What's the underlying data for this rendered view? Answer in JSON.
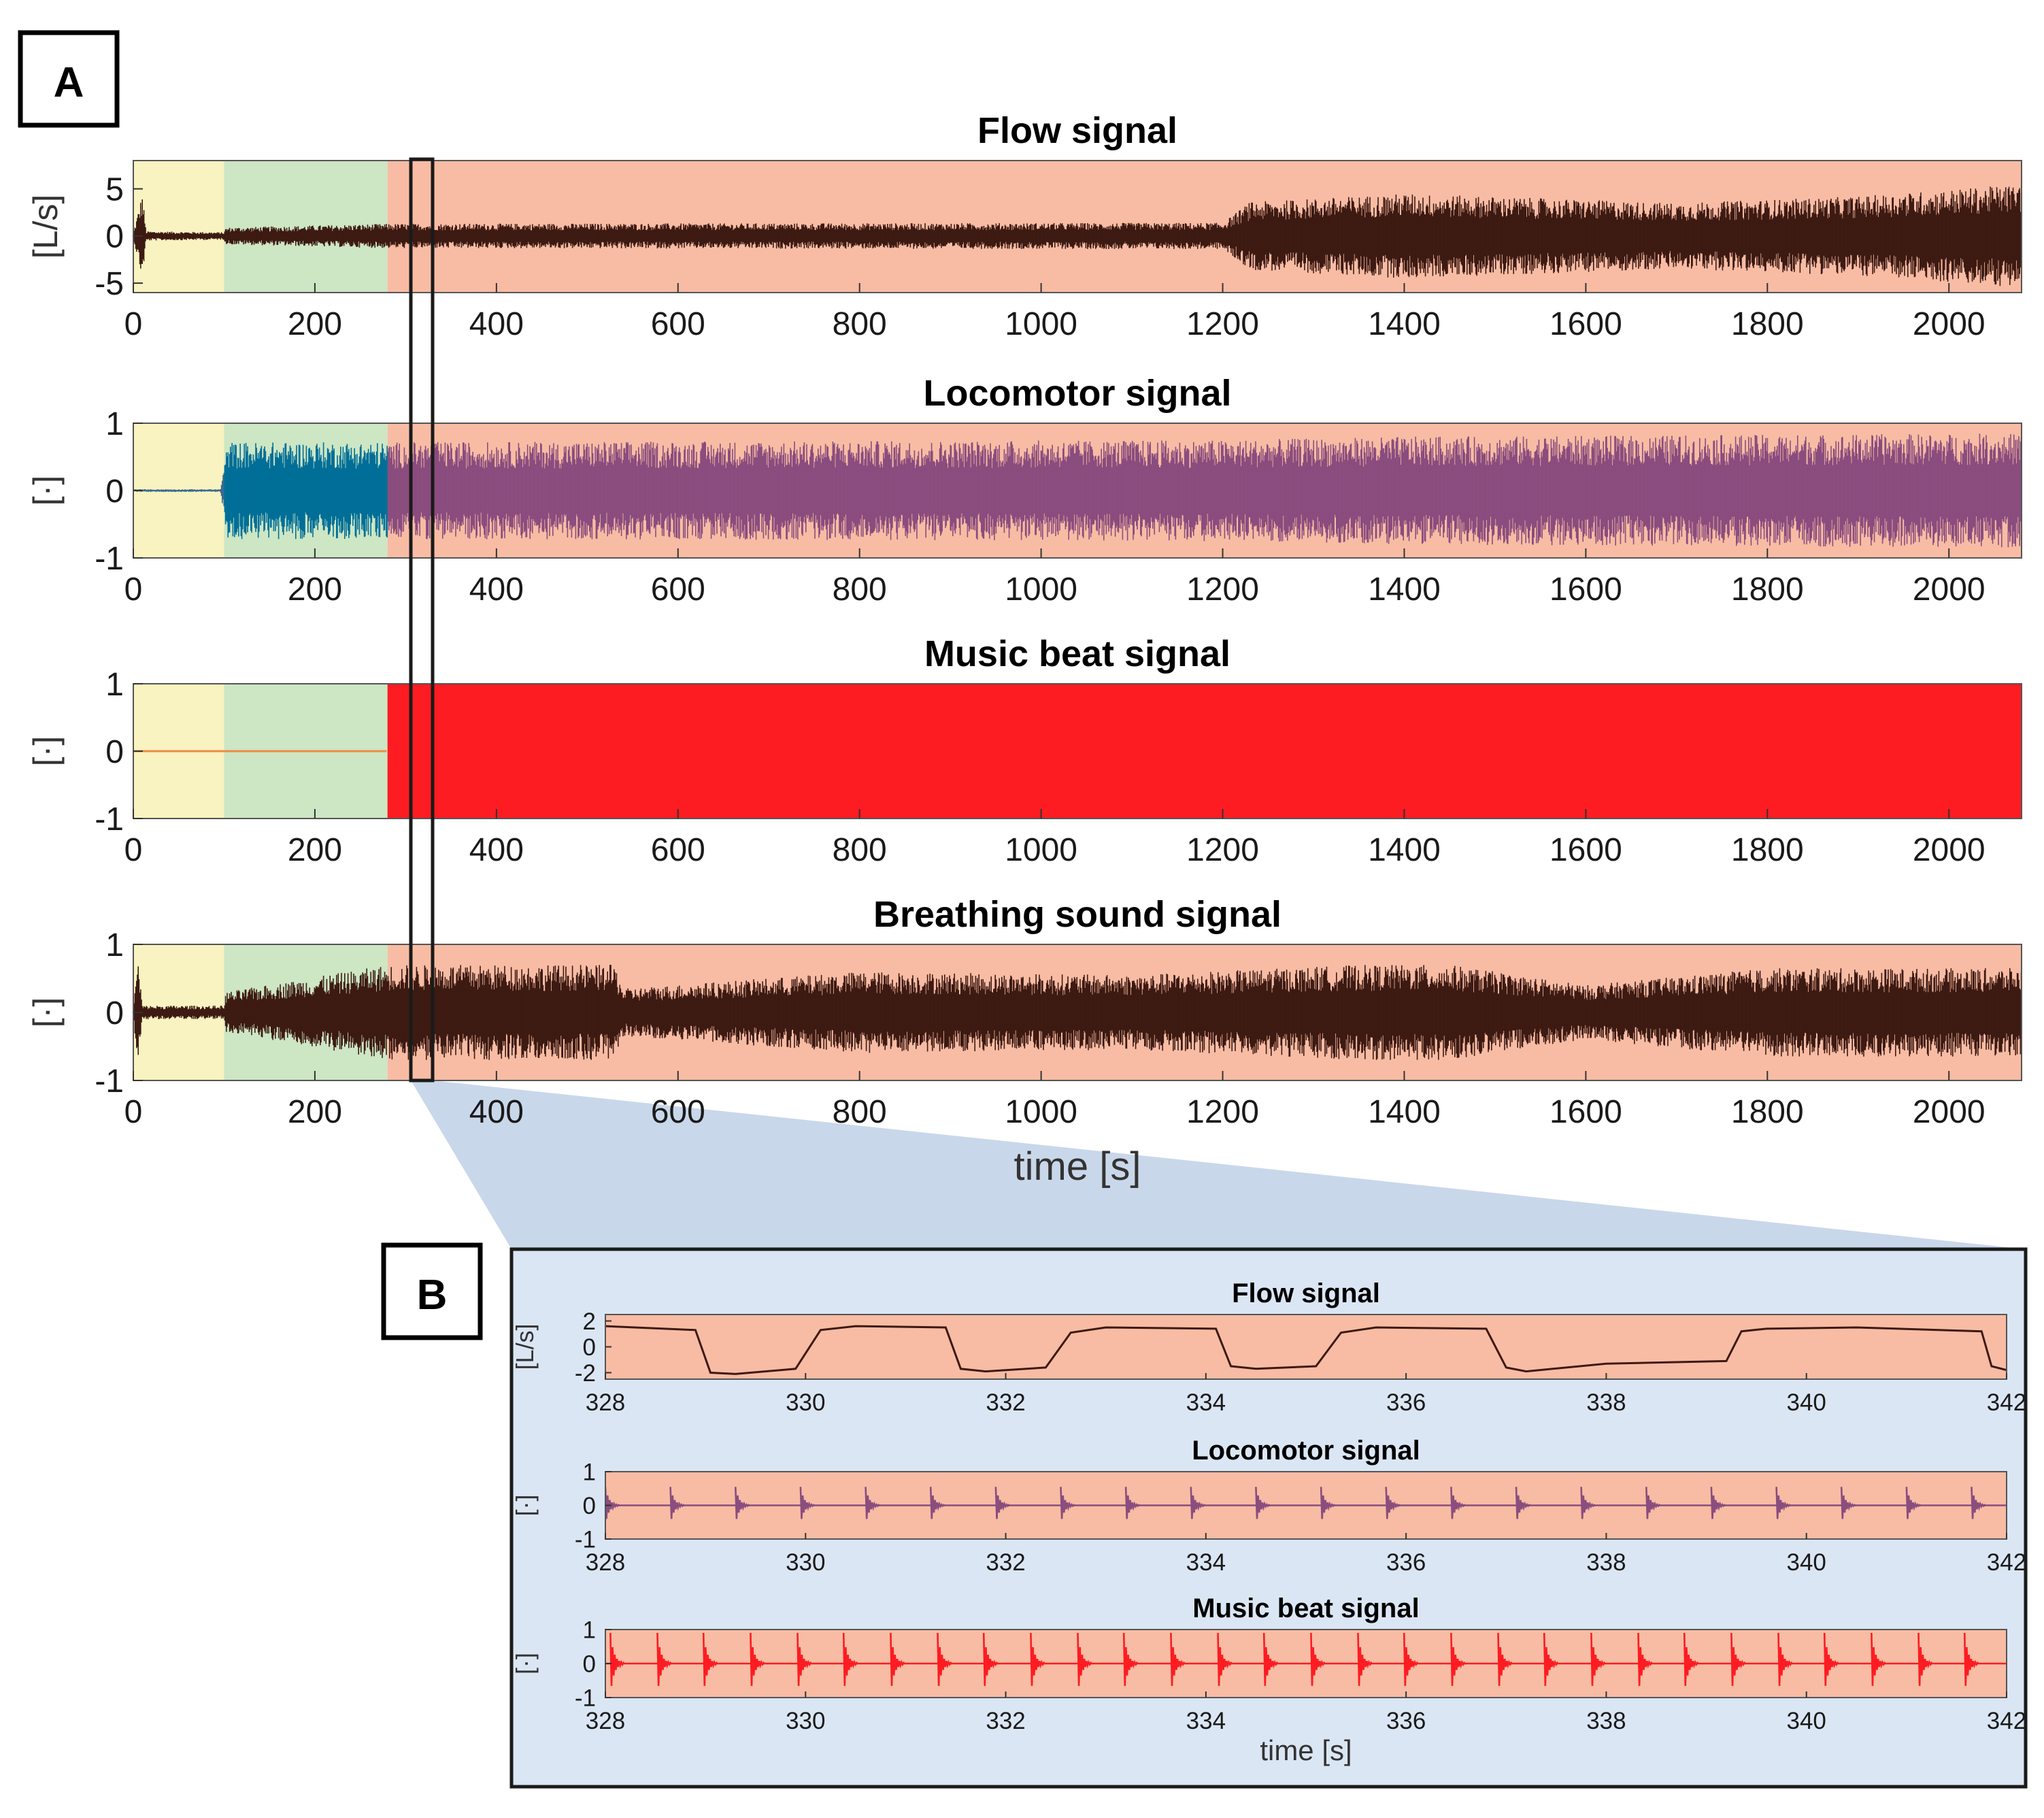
{
  "colors": {
    "rest": "#f8f3c0",
    "warmup": "#cde6c4",
    "exercise": "#f8bca4",
    "flow": "#3d1a12",
    "locomotor_rest": "#3a6a92",
    "locomotor_warmup": "#006f98",
    "locomotor_exercise": "#8a4d7e",
    "music": "#fd1c22",
    "music_flat": "#ef8a44",
    "inset_bg": "#dbe6f4",
    "zoom_band": "#c9d7ea"
  },
  "panel_labels": {
    "a": "A",
    "b": "B"
  },
  "chart_data": [
    {
      "id": "A-flow",
      "type": "line",
      "title": "Flow signal",
      "ylabel": "[L/s]",
      "xlabel": "",
      "xlim": [
        0,
        2080
      ],
      "ylim": [
        -6,
        8
      ],
      "yticks": [
        5,
        0,
        -5
      ],
      "ytick_labels": [
        "5",
        "0",
        "-5"
      ],
      "xticks": [
        0,
        200,
        400,
        600,
        800,
        1000,
        1200,
        1400,
        1600,
        1800,
        2000
      ],
      "xtick_labels": [
        "0",
        "200",
        "400",
        "600",
        "800",
        "1000",
        "1200",
        "1400",
        "1600",
        "1800",
        "2000"
      ],
      "phases": [
        {
          "name": "rest",
          "start": 0,
          "end": 100
        },
        {
          "name": "warmup",
          "start": 100,
          "end": 280
        },
        {
          "name": "exercise",
          "start": 280,
          "end": 2080
        }
      ],
      "series": [
        {
          "name": "flow",
          "envelope": [
            [
              0,
              0.3
            ],
            [
              10,
              4.6
            ],
            [
              14,
              0.5
            ],
            [
              100,
              0.4
            ],
            [
              102,
              0.9
            ],
            [
              280,
              1.3
            ],
            [
              1200,
              1.4
            ],
            [
              1230,
              3.6
            ],
            [
              1400,
              4.5
            ],
            [
              1700,
              3.5
            ],
            [
              1900,
              4.2
            ],
            [
              2080,
              5.5
            ]
          ]
        }
      ]
    },
    {
      "id": "A-locomotor",
      "type": "line",
      "title": "Locomotor signal",
      "ylabel": "[·]",
      "xlabel": "",
      "xlim": [
        0,
        2080
      ],
      "ylim": [
        -1,
        1
      ],
      "yticks": [
        1,
        0,
        -1
      ],
      "ytick_labels": [
        "1",
        "0",
        "-1"
      ],
      "xticks": [
        0,
        200,
        400,
        600,
        800,
        1000,
        1200,
        1400,
        1600,
        1800,
        2000
      ],
      "xtick_labels": [
        "0",
        "200",
        "400",
        "600",
        "800",
        "1000",
        "1200",
        "1400",
        "1600",
        "1800",
        "2000"
      ],
      "phases": [
        {
          "name": "rest",
          "start": 0,
          "end": 100
        },
        {
          "name": "warmup",
          "start": 100,
          "end": 280
        },
        {
          "name": "exercise",
          "start": 280,
          "end": 2080
        }
      ],
      "series": [
        {
          "name": "locomotor",
          "envelope": [
            [
              0,
              0.02
            ],
            [
              96,
              0.02
            ],
            [
              104,
              0.72
            ],
            [
              280,
              0.72
            ],
            [
              1200,
              0.75
            ],
            [
              1400,
              0.8
            ],
            [
              2080,
              0.85
            ]
          ]
        }
      ]
    },
    {
      "id": "A-music",
      "type": "area",
      "title": "Music beat signal",
      "ylabel": "[·]",
      "xlabel": "",
      "xlim": [
        0,
        2080
      ],
      "ylim": [
        -1,
        1
      ],
      "yticks": [
        1,
        0,
        -1
      ],
      "ytick_labels": [
        "1",
        "0",
        "-1"
      ],
      "xticks": [
        0,
        200,
        400,
        600,
        800,
        1000,
        1200,
        1400,
        1600,
        1800,
        2000
      ],
      "xtick_labels": [
        "0",
        "200",
        "400",
        "600",
        "800",
        "1000",
        "1200",
        "1400",
        "1600",
        "1800",
        "2000"
      ],
      "phases": [
        {
          "name": "rest",
          "start": 0,
          "end": 100
        },
        {
          "name": "warmup",
          "start": 100,
          "end": 280
        },
        {
          "name": "exercise",
          "start": 280,
          "end": 2080
        }
      ],
      "series": [
        {
          "name": "music beat",
          "envelope": [
            [
              0,
              0.0
            ],
            [
              279,
              0.0
            ],
            [
              280,
              1.0
            ],
            [
              2080,
              1.0
            ]
          ]
        }
      ]
    },
    {
      "id": "A-breathing",
      "type": "line",
      "title": "Breathing sound signal",
      "ylabel": "[·]",
      "xlabel": "time [s]",
      "xlim": [
        0,
        2080
      ],
      "ylim": [
        -1,
        1
      ],
      "yticks": [
        1,
        0,
        -1
      ],
      "ytick_labels": [
        "1",
        "0",
        "-1"
      ],
      "xticks": [
        0,
        200,
        400,
        600,
        800,
        1000,
        1200,
        1400,
        1600,
        1800,
        2000
      ],
      "xtick_labels": [
        "0",
        "200",
        "400",
        "600",
        "800",
        "1000",
        "1200",
        "1400",
        "1600",
        "1800",
        "2000"
      ],
      "phases": [
        {
          "name": "rest",
          "start": 0,
          "end": 100
        },
        {
          "name": "warmup",
          "start": 100,
          "end": 280
        },
        {
          "name": "exercise",
          "start": 280,
          "end": 2080
        }
      ],
      "series": [
        {
          "name": "breathing sound",
          "envelope": [
            [
              0,
              0.1
            ],
            [
              5,
              0.8
            ],
            [
              10,
              0.1
            ],
            [
              100,
              0.1
            ],
            [
              102,
              0.3
            ],
            [
              170,
              0.45
            ],
            [
              280,
              0.7
            ],
            [
              530,
              0.7
            ],
            [
              540,
              0.35
            ],
            [
              800,
              0.6
            ],
            [
              1100,
              0.55
            ],
            [
              1350,
              0.7
            ],
            [
              1450,
              0.7
            ],
            [
              1600,
              0.4
            ],
            [
              1800,
              0.65
            ],
            [
              2080,
              0.65
            ]
          ]
        }
      ]
    },
    {
      "id": "B-flow",
      "type": "line",
      "title": "Flow signal",
      "ylabel": "[L/s]",
      "xlabel": "",
      "xlim": [
        328,
        342
      ],
      "ylim": [
        -2.5,
        2.5
      ],
      "yticks": [
        2,
        0,
        -2
      ],
      "ytick_labels": [
        "2",
        "0",
        "-2"
      ],
      "xticks": [
        328,
        330,
        332,
        334,
        336,
        338,
        340,
        342
      ],
      "xtick_labels": [
        "328",
        "330",
        "332",
        "334",
        "336",
        "338",
        "340",
        "342"
      ],
      "series": [
        {
          "name": "flow",
          "x": [
            328.0,
            328.9,
            329.05,
            329.3,
            329.9,
            330.15,
            330.5,
            331.4,
            331.55,
            331.8,
            332.4,
            332.65,
            333.0,
            334.1,
            334.25,
            334.5,
            335.1,
            335.35,
            335.7,
            336.8,
            337.0,
            337.2,
            338.0,
            339.2,
            339.35,
            339.6,
            340.5,
            341.75,
            341.85,
            342.0
          ],
          "y": [
            1.6,
            1.3,
            -2.0,
            -2.1,
            -1.7,
            1.3,
            1.6,
            1.5,
            -1.7,
            -1.9,
            -1.6,
            1.1,
            1.5,
            1.4,
            -1.5,
            -1.7,
            -1.5,
            1.1,
            1.5,
            1.4,
            -1.6,
            -1.9,
            -1.3,
            -1.1,
            1.2,
            1.4,
            1.5,
            1.2,
            -1.5,
            -1.8
          ]
        }
      ]
    },
    {
      "id": "B-locomotor",
      "type": "line",
      "title": "Locomotor signal",
      "ylabel": "[·]",
      "xlabel": "",
      "xlim": [
        328,
        342
      ],
      "ylim": [
        -1,
        1
      ],
      "yticks": [
        1,
        0,
        -1
      ],
      "ytick_labels": [
        "1",
        "0",
        "-1"
      ],
      "xticks": [
        328,
        330,
        332,
        334,
        336,
        338,
        340,
        342
      ],
      "xtick_labels": [
        "328",
        "330",
        "332",
        "334",
        "336",
        "338",
        "340",
        "342"
      ],
      "series": [
        {
          "name": "locomotor",
          "spike_times": [
            328.0,
            328.65,
            329.3,
            329.95,
            330.6,
            331.25,
            331.9,
            332.55,
            333.2,
            333.85,
            334.5,
            335.15,
            335.8,
            336.45,
            337.1,
            337.75,
            338.4,
            339.05,
            339.7,
            340.35,
            341.0,
            341.65
          ],
          "peak": 0.55
        }
      ]
    },
    {
      "id": "B-music",
      "type": "line",
      "title": "Music beat signal",
      "ylabel": "[·]",
      "xlabel": "time [s]",
      "xlim": [
        328,
        342
      ],
      "ylim": [
        -1,
        1
      ],
      "yticks": [
        1,
        0,
        -1
      ],
      "ytick_labels": [
        "1",
        "0",
        "-1"
      ],
      "xticks": [
        328,
        330,
        332,
        334,
        336,
        338,
        340,
        342
      ],
      "xtick_labels": [
        "328",
        "330",
        "332",
        "334",
        "336",
        "338",
        "340",
        "342"
      ],
      "series": [
        {
          "name": "music beat",
          "spike_times": [
            328.05,
            328.52,
            328.98,
            329.45,
            329.92,
            330.38,
            330.85,
            331.32,
            331.78,
            332.25,
            332.72,
            333.18,
            333.65,
            334.12,
            334.58,
            335.05,
            335.52,
            335.98,
            336.45,
            336.92,
            337.38,
            337.85,
            338.32,
            338.78,
            339.25,
            339.72,
            340.18,
            340.65,
            341.12,
            341.58
          ],
          "peak": 0.9
        }
      ]
    }
  ]
}
